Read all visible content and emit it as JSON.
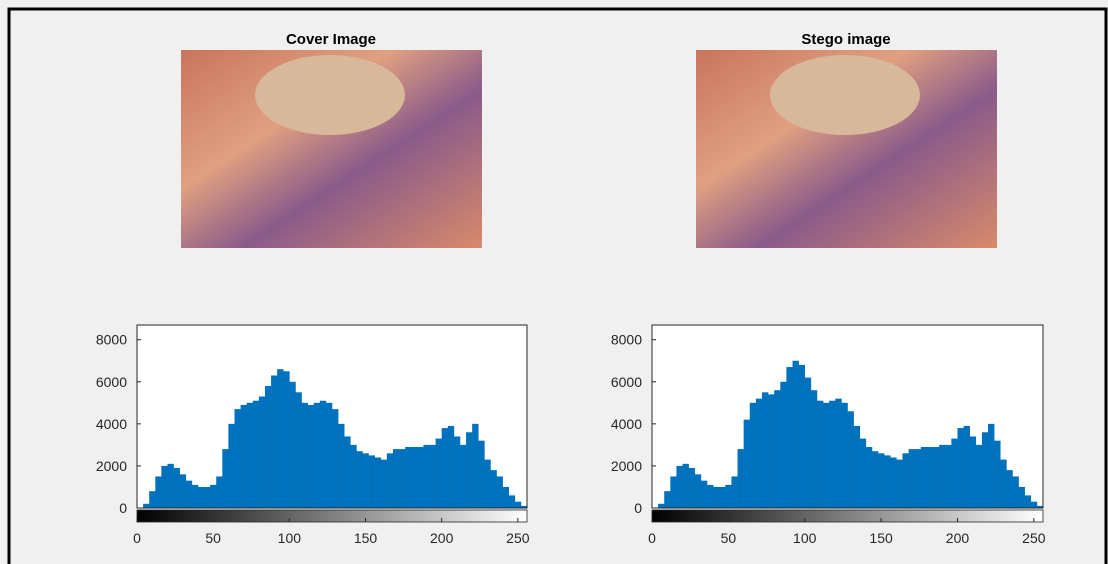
{
  "images": [
    {
      "title": "Cover Image"
    },
    {
      "title": "Stego image"
    }
  ],
  "chart_data": [
    {
      "type": "histogram",
      "color": "#0072bd",
      "bins": [
        0,
        4,
        8,
        12,
        16,
        20,
        24,
        28,
        32,
        36,
        40,
        44,
        48,
        52,
        56,
        60,
        64,
        68,
        72,
        76,
        80,
        84,
        88,
        92,
        96,
        100,
        104,
        108,
        112,
        116,
        120,
        124,
        128,
        132,
        136,
        140,
        144,
        148,
        152,
        156,
        160,
        164,
        168,
        172,
        176,
        180,
        184,
        188,
        192,
        196,
        200,
        204,
        208,
        212,
        216,
        220,
        224,
        228,
        232,
        236,
        240,
        244,
        248,
        252,
        256
      ],
      "values": [
        0,
        200,
        800,
        1500,
        2000,
        2100,
        1900,
        1600,
        1300,
        1100,
        1000,
        1000,
        1100,
        1500,
        2800,
        4000,
        4700,
        4900,
        5000,
        5100,
        5300,
        5800,
        6300,
        6600,
        6500,
        6000,
        5500,
        5000,
        4900,
        5000,
        5100,
        5000,
        4700,
        4000,
        3400,
        3000,
        2700,
        2600,
        2500,
        2400,
        2300,
        2600,
        2800,
        2800,
        2900,
        2900,
        2900,
        3000,
        3000,
        3300,
        3800,
        3900,
        3400,
        3000,
        3600,
        4000,
        3200,
        2300,
        1800,
        1500,
        1000,
        600,
        300,
        100
      ],
      "xlim": [
        0,
        256
      ],
      "ylim": [
        0,
        8700
      ],
      "xticks": [
        0,
        50,
        100,
        150,
        200,
        250
      ],
      "yticks": [
        0,
        2000,
        4000,
        6000,
        8000
      ]
    },
    {
      "type": "histogram",
      "color": "#0072bd",
      "bins": [
        0,
        4,
        8,
        12,
        16,
        20,
        24,
        28,
        32,
        36,
        40,
        44,
        48,
        52,
        56,
        60,
        64,
        68,
        72,
        76,
        80,
        84,
        88,
        92,
        96,
        100,
        104,
        108,
        112,
        116,
        120,
        124,
        128,
        132,
        136,
        140,
        144,
        148,
        152,
        156,
        160,
        164,
        168,
        172,
        176,
        180,
        184,
        188,
        192,
        196,
        200,
        204,
        208,
        212,
        216,
        220,
        224,
        228,
        232,
        236,
        240,
        244,
        248,
        252,
        256
      ],
      "values": [
        0,
        200,
        800,
        1500,
        2000,
        2100,
        1900,
        1600,
        1300,
        1100,
        1000,
        1000,
        1100,
        1500,
        2800,
        4200,
        5000,
        5200,
        5500,
        5400,
        5600,
        6000,
        6700,
        7000,
        6800,
        6200,
        5600,
        5100,
        5000,
        5100,
        5200,
        5000,
        4600,
        3900,
        3300,
        2900,
        2700,
        2600,
        2500,
        2400,
        2300,
        2600,
        2800,
        2800,
        2900,
        2900,
        2900,
        3000,
        3000,
        3300,
        3800,
        3900,
        3400,
        3000,
        3600,
        4000,
        3200,
        2300,
        1800,
        1500,
        1000,
        600,
        300,
        100
      ],
      "xlim": [
        0,
        256
      ],
      "ylim": [
        0,
        8700
      ],
      "xticks": [
        0,
        50,
        100,
        150,
        200,
        250
      ],
      "yticks": [
        0,
        2000,
        4000,
        6000,
        8000
      ]
    }
  ]
}
